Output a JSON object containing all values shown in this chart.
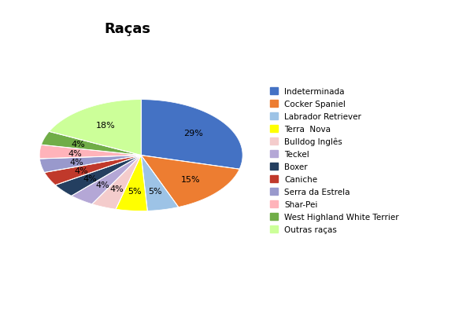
{
  "title": "Raças",
  "labels": [
    "Indeterminada",
    "Cocker Spaniel",
    "Labrador Retriever",
    "Terra  Nova",
    "Bulldog Inglês",
    "Teckel",
    "Boxer",
    "Caniche",
    "Serra da Estrela",
    "Shar-Pei",
    "West Highland White Terrier",
    "Outras raças"
  ],
  "values": [
    29,
    15,
    5,
    5,
    4,
    4,
    4,
    4,
    4,
    4,
    4,
    18
  ],
  "colors": [
    "#4472C4",
    "#ED7D31",
    "#9DC3E6",
    "#FFFF00",
    "#F4CCCC",
    "#B4A7D6",
    "#243F60",
    "#C0392B",
    "#9999CC",
    "#FFB3BA",
    "#70AD47",
    "#CCFF99"
  ],
  "pct_labels": [
    "29%",
    "15%",
    "5%",
    "5%",
    "4%",
    "4%",
    "4%",
    "4%",
    "4%",
    "4%",
    "4%",
    "18%"
  ],
  "startangle": 90,
  "title_fontsize": 13
}
